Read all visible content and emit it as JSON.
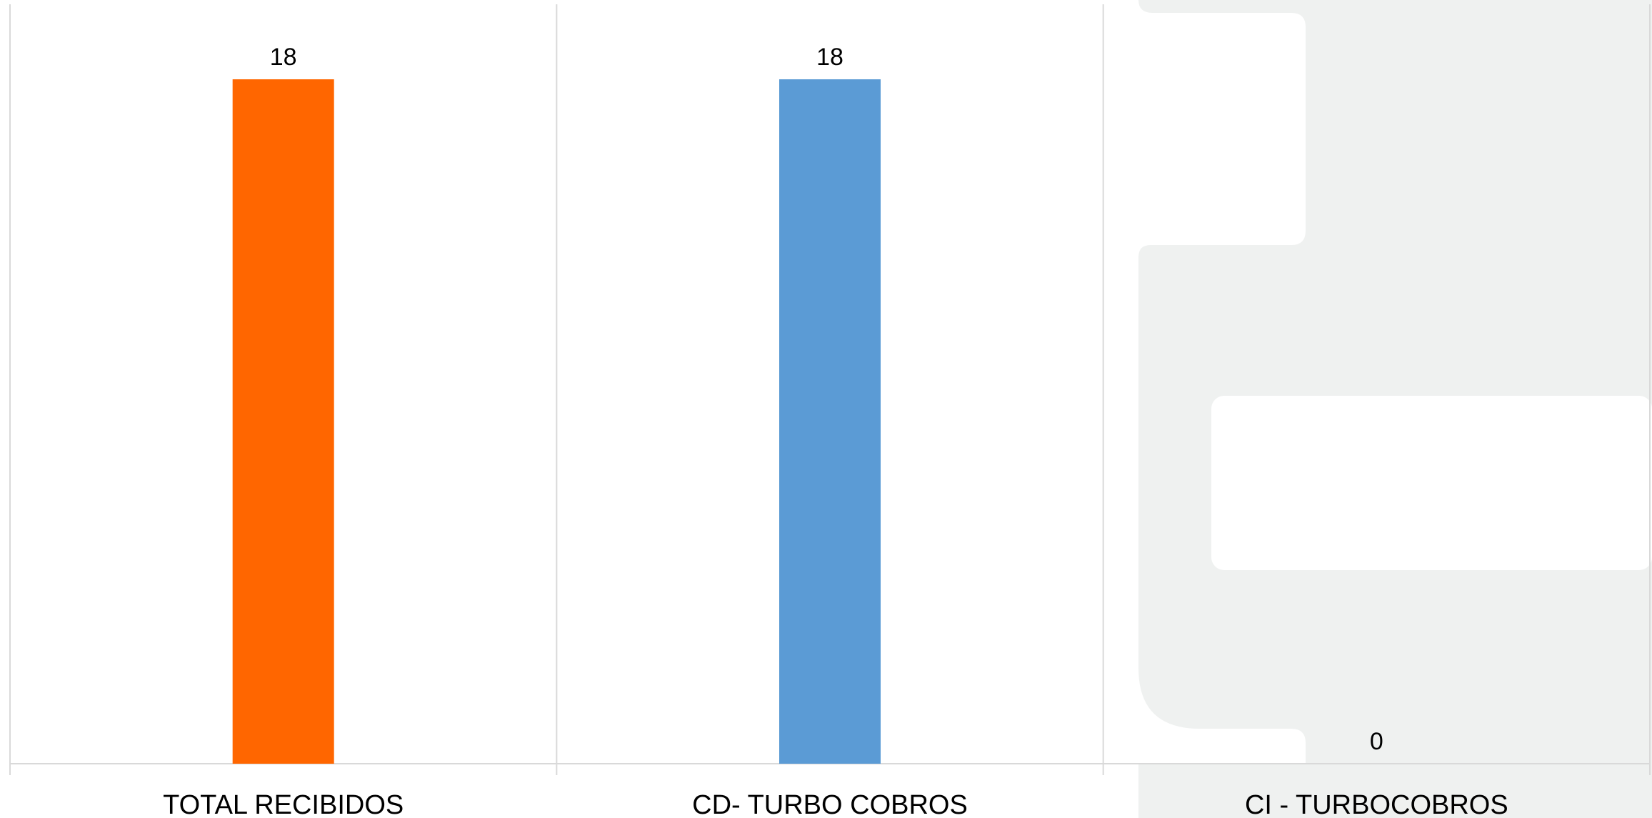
{
  "chart_data": {
    "type": "bar",
    "categories": [
      "TOTAL RECIBIDOS",
      "CD- TURBO COBROS",
      "CI - TURBOCOBROS"
    ],
    "values": [
      18,
      18,
      0
    ],
    "colors": [
      "#ff6600",
      "#5b9bd5",
      "#5b9bd5"
    ],
    "data_labels": [
      "18",
      "18",
      "0"
    ],
    "ylim": [
      0,
      18
    ],
    "grid": false,
    "vertical_category_separators": true,
    "legend": "none",
    "title": "",
    "xlabel": "",
    "ylabel": ""
  }
}
